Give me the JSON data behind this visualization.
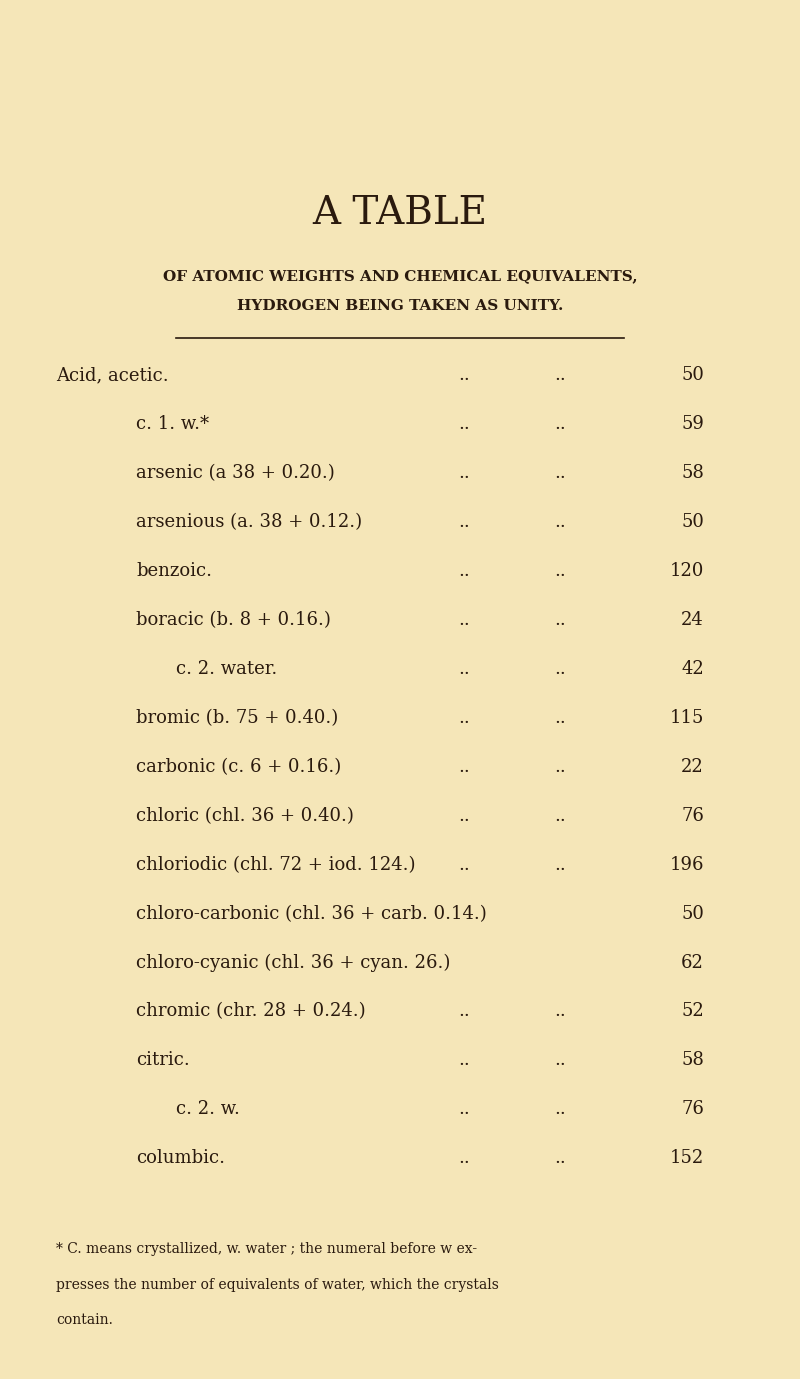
{
  "bg_color": "#f5e6b8",
  "title1": "A TABLE",
  "title2": "OF ATOMIC WEIGHTS AND CHEMICAL EQUIVALENTS,",
  "title3": "HYDROGEN BEING TAKEN AS UNITY.",
  "title1_fontsize": 28,
  "title2_fontsize": 11,
  "title3_fontsize": 11,
  "text_color": "#2a1a0e",
  "rows": [
    {
      "indent": 0,
      "label": "Acid, acetic.",
      "dots": true,
      "value": "50"
    },
    {
      "indent": 1,
      "label": "c. 1. w.*",
      "dots": true,
      "value": "59"
    },
    {
      "indent": 1,
      "label": "arsenic (a 38 + 0.20.)",
      "dots": true,
      "value": "58"
    },
    {
      "indent": 1,
      "label": "arsenious (a. 38 + 0.12.)",
      "dots": true,
      "value": "50"
    },
    {
      "indent": 1,
      "label": "benzoic.",
      "dots": true,
      "value": "120"
    },
    {
      "indent": 1,
      "label": "boracic (b. 8 + 0.16.)",
      "dots": true,
      "value": "24"
    },
    {
      "indent": 2,
      "label": "c. 2. water.",
      "dots": true,
      "value": "42"
    },
    {
      "indent": 1,
      "label": "bromic (b. 75 + 0.40.)",
      "dots": true,
      "value": "115"
    },
    {
      "indent": 1,
      "label": "carbonic (c. 6 + 0.16.)",
      "dots": true,
      "value": "22"
    },
    {
      "indent": 1,
      "label": "chloric (chl. 36 + 0.40.)",
      "dots": true,
      "value": "76"
    },
    {
      "indent": 1,
      "label": "chloriodic (chl. 72 + iod. 124.)",
      "dots": true,
      "value": "196"
    },
    {
      "indent": 1,
      "label": "chloro-carbonic (chl. 36 + carb. 0.14.)",
      "dots": false,
      "value": "50"
    },
    {
      "indent": 1,
      "label": "chloro-cyanic (chl. 36 + cyan. 26.)",
      "dots": false,
      "value": "62"
    },
    {
      "indent": 1,
      "label": "chromic (chr. 28 + 0.24.)",
      "dots": true,
      "value": "52"
    },
    {
      "indent": 1,
      "label": "citric.",
      "dots": true,
      "value": "58"
    },
    {
      "indent": 2,
      "label": "c. 2. w.",
      "dots": true,
      "value": "76"
    },
    {
      "indent": 1,
      "label": "columbic.",
      "dots": true,
      "value": "152"
    }
  ],
  "footnote_line1": "* C. means crystallized, w. water ; the numeral before w ex-",
  "footnote_line2": "presses the number of equivalents of water, which the crystals",
  "footnote_line3": "contain.",
  "footnote_fontsize": 10
}
